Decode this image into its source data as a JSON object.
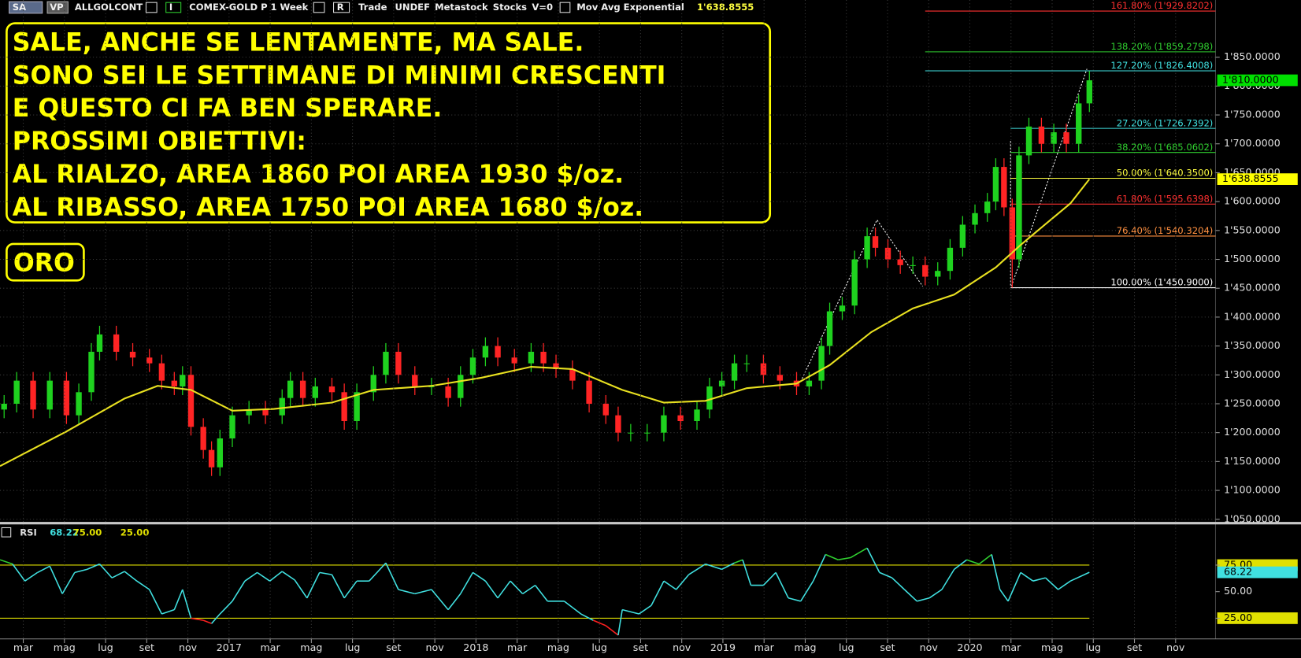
{
  "toolbar": {
    "items": [
      "SA",
      "VP",
      "ALLGOLCONT",
      "I",
      "COMEX-GOLD P",
      "1 Week",
      "R",
      "Trade",
      "UNDEF",
      "Metastock",
      "Stocks",
      "V=0",
      "Mov Avg Exponential",
      "1'638.8555"
    ]
  },
  "chart_data": [
    {
      "type": "candlestick",
      "annotations": [
        "SALE, ANCHE SE LENTAMENTE, MA SALE.",
        "SONO SEI LE SETTIMANE DI MINIMI CRESCENTI",
        "E QUESTO CI FA BEN SPERARE.",
        "PROSSIMI OBIETTIVI:",
        "AL RIALZO, AREA 1860 POI AREA 1930 $/oz.",
        "AL RIBASSO, AREA 1750 POI AREA 1680 $/oz."
      ],
      "label": "ORO",
      "up_color": "#1fd21f",
      "down_color": "#ff2424",
      "x": [
        1.07,
        1.68,
        2.48,
        3.29,
        4.1,
        4.7,
        5.31,
        5.71,
        6.52,
        7.32,
        8.13,
        8.73,
        9.34,
        9.74,
        10.15,
        10.75,
        11.15,
        11.56,
        12.16,
        12.97,
        13.77,
        14.58,
        14.98,
        15.59,
        16.19,
        17.0,
        17.6,
        18.21,
        19.02,
        19.62,
        20.23,
        21.03,
        21.84,
        22.65,
        23.25,
        23.85,
        24.46,
        25.06,
        25.87,
        26.68,
        27.28,
        27.89,
        28.69,
        29.5,
        30.31,
        30.91,
        31.52,
        32.32,
        33.13,
        33.94,
        34.74,
        35.35,
        35.95,
        36.56,
        37.16,
        37.97,
        38.77,
        39.58,
        40.19,
        40.79,
        41.19,
        41.8,
        42.4,
        43.01,
        43.41,
        44.02,
        44.62,
        45.23,
        45.83,
        46.44,
        47.04,
        47.65,
        48.25,
        48.85,
        49.26,
        49.66,
        50.06,
        50.39,
        50.87,
        51.48,
        52.08,
        52.69,
        53.29,
        53.81
      ],
      "open": [
        1240,
        1250,
        1290,
        1240,
        1290,
        1230,
        1270,
        1340,
        1370,
        1340,
        1330,
        1320,
        1290,
        1280,
        1300,
        1210,
        1170,
        1140,
        1190,
        1230,
        1240,
        1230,
        1260,
        1290,
        1260,
        1280,
        1270,
        1220,
        1270,
        1300,
        1340,
        1300,
        1280,
        1280,
        1260,
        1300,
        1330,
        1350,
        1330,
        1320,
        1340,
        1320,
        1310,
        1290,
        1250,
        1230,
        1200,
        1200,
        1200,
        1230,
        1220,
        1240,
        1280,
        1290,
        1320,
        1320,
        1300,
        1290,
        1280,
        1290,
        1350,
        1410,
        1420,
        1500,
        1540,
        1520,
        1500,
        1490,
        1490,
        1470,
        1480,
        1520,
        1560,
        1580,
        1600,
        1660,
        1590,
        1500,
        1680,
        1730,
        1700,
        1720,
        1700,
        1770
      ],
      "high": [
        1265,
        1305,
        1305,
        1305,
        1305,
        1285,
        1355,
        1385,
        1385,
        1355,
        1345,
        1335,
        1305,
        1315,
        1315,
        1225,
        1185,
        1205,
        1245,
        1255,
        1255,
        1275,
        1305,
        1305,
        1295,
        1295,
        1285,
        1285,
        1315,
        1355,
        1355,
        1315,
        1295,
        1295,
        1315,
        1345,
        1365,
        1365,
        1345,
        1355,
        1355,
        1335,
        1325,
        1305,
        1265,
        1245,
        1215,
        1215,
        1245,
        1245,
        1255,
        1295,
        1305,
        1335,
        1335,
        1335,
        1315,
        1305,
        1305,
        1365,
        1425,
        1435,
        1515,
        1555,
        1555,
        1535,
        1515,
        1505,
        1505,
        1495,
        1535,
        1575,
        1595,
        1615,
        1675,
        1675,
        1605,
        1695,
        1745,
        1745,
        1735,
        1735,
        1785,
        1826
      ],
      "low": [
        1225,
        1235,
        1225,
        1225,
        1215,
        1215,
        1255,
        1325,
        1325,
        1315,
        1305,
        1275,
        1265,
        1265,
        1195,
        1155,
        1125,
        1125,
        1175,
        1215,
        1215,
        1215,
        1245,
        1245,
        1245,
        1255,
        1205,
        1205,
        1255,
        1285,
        1285,
        1265,
        1265,
        1245,
        1245,
        1285,
        1315,
        1315,
        1305,
        1305,
        1305,
        1295,
        1275,
        1235,
        1215,
        1185,
        1185,
        1185,
        1185,
        1205,
        1205,
        1225,
        1265,
        1275,
        1305,
        1285,
        1275,
        1265,
        1265,
        1275,
        1335,
        1395,
        1405,
        1485,
        1505,
        1485,
        1475,
        1475,
        1455,
        1455,
        1465,
        1505,
        1545,
        1565,
        1585,
        1575,
        1451,
        1485,
        1665,
        1685,
        1685,
        1685,
        1685,
        1755
      ],
      "close": [
        1250,
        1290,
        1240,
        1290,
        1230,
        1270,
        1340,
        1370,
        1340,
        1330,
        1320,
        1290,
        1280,
        1300,
        1210,
        1170,
        1140,
        1190,
        1230,
        1240,
        1230,
        1260,
        1290,
        1260,
        1280,
        1270,
        1220,
        1270,
        1300,
        1340,
        1300,
        1280,
        1280,
        1260,
        1300,
        1330,
        1350,
        1330,
        1320,
        1340,
        1320,
        1310,
        1290,
        1250,
        1230,
        1200,
        1200,
        1200,
        1230,
        1220,
        1240,
        1280,
        1290,
        1320,
        1320,
        1300,
        1290,
        1280,
        1290,
        1350,
        1410,
        1420,
        1500,
        1540,
        1520,
        1500,
        1490,
        1490,
        1470,
        1480,
        1520,
        1560,
        1580,
        1600,
        1660,
        1590,
        1500,
        1680,
        1730,
        1700,
        1720,
        1700,
        1770,
        1810
      ],
      "moving_average": {
        "color": "#e8e020",
        "x": [
          0.87,
          4.1,
          6.92,
          8.53,
          10.15,
          12.16,
          14.18,
          17.0,
          19.02,
          21.84,
          24.26,
          26.68,
          28.69,
          31.11,
          33.13,
          35.15,
          37.16,
          39.58,
          41.19,
          43.21,
          45.23,
          47.24,
          49.26,
          50.47,
          51.68,
          52.89,
          53.81
        ],
        "values": [
          1142,
          1202,
          1259,
          1281,
          1274,
          1238,
          1241,
          1252,
          1274,
          1281,
          1295,
          1314,
          1310,
          1274,
          1252,
          1255,
          1277,
          1285,
          1317,
          1374,
          1415,
          1439,
          1486,
          1525,
          1561,
          1597,
          1638.8555
        ]
      },
      "fib_levels": [
        {
          "value": 1929.8202,
          "label": "161.80% (1'929.8202)",
          "color": "#ff3030",
          "x": 45.83
        },
        {
          "value": 1859.2798,
          "label": "138.20% (1'859.2798)",
          "color": "#30d030",
          "x": 45.83
        },
        {
          "value": 1826.4008,
          "label": "127.20% (1'826.4008)",
          "color": "#40e0e0",
          "x": 45.83
        },
        {
          "value": 1726.7392,
          "label": "27.20% (1'726.7392)",
          "color": "#40e0e0",
          "x": 49.98
        },
        {
          "value": 1685.0602,
          "label": "38.20% (1'685.0602)",
          "color": "#30d030",
          "x": 49.98
        },
        {
          "value": 1640.35,
          "label": "50.00% (1'640.3500)",
          "color": "#ffff40",
          "x": 49.98
        },
        {
          "value": 1595.6398,
          "label": "61.80% (1'595.6398)",
          "color": "#ff3030",
          "x": 49.98
        },
        {
          "value": 1540.3204,
          "label": "76.40% (1'540.3204)",
          "color": "#ff9040",
          "x": 49.98
        },
        {
          "value": 1450.9,
          "label": "100.00% (1'450.9000)",
          "color": "#ffffff",
          "x": 49.98
        }
      ],
      "price_tags": [
        {
          "value": 1810,
          "label": "1'810.0000",
          "color": "#00e000"
        },
        {
          "value": 1638.8555,
          "label": "1'638.8555",
          "color": "#ffff00"
        }
      ],
      "xlim": [
        0.87,
        59.94
      ],
      "ylim": [
        1044,
        1949
      ],
      "yticks": [
        {
          "value": 1850,
          "label": "1'850.0000"
        },
        {
          "value": 1800,
          "label": "1'800.0000"
        },
        {
          "value": 1750,
          "label": "1'750.0000"
        },
        {
          "value": 1700,
          "label": "1'700.0000"
        },
        {
          "value": 1650,
          "label": "1'650.0000"
        },
        {
          "value": 1600,
          "label": "1'600.0000"
        },
        {
          "value": 1550,
          "label": "1'550.0000"
        },
        {
          "value": 1500,
          "label": "1'500.0000"
        },
        {
          "value": 1450,
          "label": "1'450.0000"
        },
        {
          "value": 1400,
          "label": "1'400.0000"
        },
        {
          "value": 1350,
          "label": "1'350.0000"
        },
        {
          "value": 1300,
          "label": "1'300.0000"
        },
        {
          "value": 1250,
          "label": "1'250.0000"
        },
        {
          "value": 1200,
          "label": "1'200.0000"
        },
        {
          "value": 1150,
          "label": "1'150.0000"
        },
        {
          "value": 1100,
          "label": "1'100.0000"
        },
        {
          "value": 1050,
          "label": "1'050.0000"
        }
      ],
      "grid": true
    },
    {
      "type": "line",
      "title": "RSI",
      "header_values": [
        "68.22",
        "75.00",
        "25.00"
      ],
      "color": "#40e0e0",
      "overbought_color": "#30d030",
      "oversold_color": "#ff2020",
      "level_color": "#e0e000",
      "levels": [
        75,
        25
      ],
      "x": [
        0.87,
        1.48,
        2.08,
        2.69,
        3.29,
        3.9,
        4.5,
        5.1,
        5.71,
        6.31,
        6.92,
        7.52,
        8.13,
        8.73,
        9.34,
        9.74,
        10.15,
        10.75,
        11.15,
        11.56,
        12.16,
        12.77,
        13.37,
        13.98,
        14.58,
        15.19,
        15.79,
        16.4,
        17.0,
        17.6,
        18.21,
        18.81,
        19.62,
        20.23,
        21.03,
        21.84,
        22.65,
        23.25,
        23.85,
        24.46,
        25.06,
        25.67,
        26.27,
        26.88,
        27.48,
        28.29,
        29.1,
        29.7,
        30.31,
        30.91,
        31.11,
        31.92,
        32.52,
        33.13,
        33.73,
        34.34,
        35.15,
        35.95,
        36.56,
        36.96,
        37.36,
        37.97,
        38.57,
        39.18,
        39.78,
        40.39,
        40.99,
        41.6,
        42.2,
        43.01,
        43.61,
        44.22,
        44.82,
        45.43,
        46.03,
        46.64,
        47.24,
        47.85,
        48.45,
        49.06,
        49.46,
        49.86,
        50.47,
        51.07,
        51.68,
        52.29,
        52.89,
        53.81
      ],
      "values": [
        80,
        76,
        60,
        68,
        74,
        48,
        68,
        71,
        76,
        63,
        69,
        60,
        52,
        29,
        33,
        52,
        25,
        23,
        20,
        29,
        41,
        60,
        68,
        60,
        69,
        61,
        44,
        68,
        66,
        44,
        60,
        60,
        77,
        52,
        48,
        52,
        33,
        48,
        68,
        60,
        44,
        60,
        48,
        56,
        41,
        41,
        29,
        23,
        18,
        9,
        33,
        29,
        37,
        60,
        52,
        66,
        76,
        71,
        77,
        80,
        56,
        56,
        68,
        44,
        41,
        60,
        85,
        80,
        82,
        91,
        68,
        63,
        52,
        41,
        44,
        52,
        71,
        80,
        76,
        85,
        52,
        41,
        68,
        60,
        63,
        52,
        60,
        68.22
      ],
      "xlim": [
        0.87,
        59.94
      ],
      "ylim": [
        5.5,
        113.3
      ],
      "yticks": [
        {
          "value": 75,
          "label": "75.00"
        },
        {
          "value": 50,
          "label": "50.00"
        },
        {
          "value": 25,
          "label": "25.00"
        }
      ],
      "xticks": [
        {
          "value": 2,
          "label": "mar"
        },
        {
          "value": 4,
          "label": "mag"
        },
        {
          "value": 6,
          "label": "lug"
        },
        {
          "value": 8,
          "label": "set"
        },
        {
          "value": 10,
          "label": "nov"
        },
        {
          "value": 12,
          "label": "2017"
        },
        {
          "value": 14,
          "label": "mar"
        },
        {
          "value": 16,
          "label": "mag"
        },
        {
          "value": 18,
          "label": "lug"
        },
        {
          "value": 20,
          "label": "set"
        },
        {
          "value": 22,
          "label": "nov"
        },
        {
          "value": 24,
          "label": "2018"
        },
        {
          "value": 26,
          "label": "mar"
        },
        {
          "value": 28,
          "label": "mag"
        },
        {
          "value": 30,
          "label": "lug"
        },
        {
          "value": 32,
          "label": "set"
        },
        {
          "value": 34,
          "label": "nov"
        },
        {
          "value": 36,
          "label": "2019"
        },
        {
          "value": 38,
          "label": "mar"
        },
        {
          "value": 40,
          "label": "mag"
        },
        {
          "value": 42,
          "label": "lug"
        },
        {
          "value": 44,
          "label": "set"
        },
        {
          "value": 46,
          "label": "nov"
        },
        {
          "value": 48,
          "label": "2020"
        },
        {
          "value": 50,
          "label": "mar"
        },
        {
          "value": 52,
          "label": "mag"
        },
        {
          "value": 54,
          "label": "lug"
        },
        {
          "value": 56,
          "label": "set"
        },
        {
          "value": 58,
          "label": "nov"
        }
      ]
    }
  ]
}
